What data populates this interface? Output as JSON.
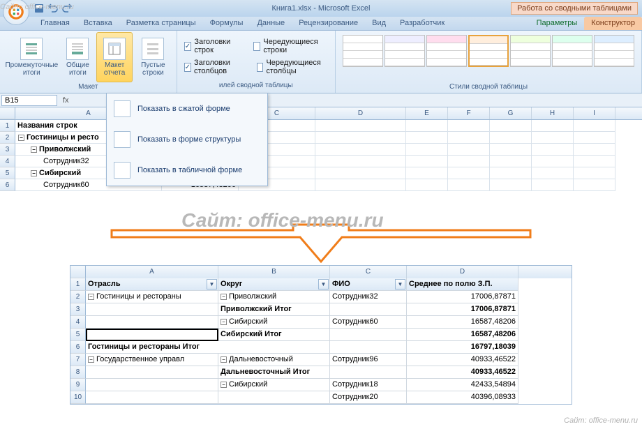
{
  "titlebar": {
    "title": "Книга1.xlsx - Microsoft Excel",
    "context_title": "Работа со сводными таблицами"
  },
  "tabs": [
    "Главная",
    "Вставка",
    "Разметка страницы",
    "Формулы",
    "Данные",
    "Рецензирование",
    "Вид",
    "Разработчик"
  ],
  "context_tabs": {
    "t1": "Параметры",
    "t2": "Конструктор"
  },
  "ribbon": {
    "layout_group": "Макет",
    "buttons": {
      "b1": "Промежуточные\nитоги",
      "b2": "Общие\nитоги",
      "b3": "Макет\nотчета",
      "b4": "Пустые\nстроки"
    },
    "checks": {
      "c1": "Заголовки строк",
      "c2": "Чередующиеся строки",
      "c3": "Заголовки столбцов",
      "c4": "Чередующиеся столбцы"
    },
    "styles_group_partial": "илей сводной таблицы",
    "styles_label": "Стили сводной таблицы"
  },
  "dropdown": {
    "i1": "Показать в сжатой форме",
    "i2": "Показать в форме структуры",
    "i3": "Показать в табличной форме"
  },
  "namebox": "B15",
  "sheet1": {
    "colw": {
      "A": 210,
      "B": 110,
      "C": 110,
      "D": 130,
      "E": 60,
      "F": 60,
      "G": 60,
      "H": 60,
      "I": 60
    },
    "header": "Названия строк",
    "rows": [
      {
        "a": "Гостиницы и ресто",
        "b": "",
        "lvl": 0
      },
      {
        "a": "Приволжский",
        "b": "",
        "lvl": 1
      },
      {
        "a": "Сотрудник32",
        "b": "17006,87871",
        "lvl": 2
      },
      {
        "a": "Сибирский",
        "b": "16587,48206",
        "lvl": 1
      },
      {
        "a": "Сотрудник60",
        "b": "16587,48206",
        "lvl": 2
      }
    ]
  },
  "watermark": "Сайт: office-menu.ru",
  "table2": {
    "colw": {
      "A": 190,
      "B": 160,
      "C": 110,
      "D": 160
    },
    "headers": {
      "A": "Отрасль",
      "B": "Округ",
      "C": "ФИО",
      "D": "Среднее по полю З.П."
    },
    "rows": [
      {
        "n": 2,
        "a": "Гостиницы и рестораны",
        "b": "Приволжский",
        "c": "Сотрудник32",
        "d": "17006,87871",
        "ea": 1,
        "eb": 1,
        "bd": 0
      },
      {
        "n": 3,
        "a": "",
        "b": "Приволжский Итог",
        "c": "",
        "d": "17006,87871",
        "bd": 1
      },
      {
        "n": 4,
        "a": "",
        "b": "Сибирский",
        "c": "Сотрудник60",
        "d": "16587,48206",
        "eb": 1,
        "bd": 0
      },
      {
        "n": 5,
        "a": "",
        "b": "Сибирский Итог",
        "c": "",
        "d": "16587,48206",
        "bd": 1,
        "sel": 1
      },
      {
        "n": 6,
        "a": "Гостиницы и рестораны Итог",
        "b": "",
        "c": "",
        "d": "16797,18039",
        "bd": 1,
        "span": 1
      },
      {
        "n": 7,
        "a": "Государственное управл",
        "b": "Дальневосточный",
        "c": "Сотрудник96",
        "d": "40933,46522",
        "ea": 1,
        "eb": 1,
        "bd": 0
      },
      {
        "n": 8,
        "a": "",
        "b": "Дальневосточный Итог",
        "c": "",
        "d": "40933,46522",
        "bd": 1
      },
      {
        "n": 9,
        "a": "",
        "b": "Сибирский",
        "c": "Сотрудник18",
        "d": "42433,54894",
        "eb": 1,
        "bd": 0
      },
      {
        "n": 10,
        "a": "",
        "b": "",
        "c": "Сотрудник20",
        "d": "40396,08933",
        "bd": 0
      }
    ]
  },
  "colors": {
    "arrow": "#f07d1a"
  }
}
